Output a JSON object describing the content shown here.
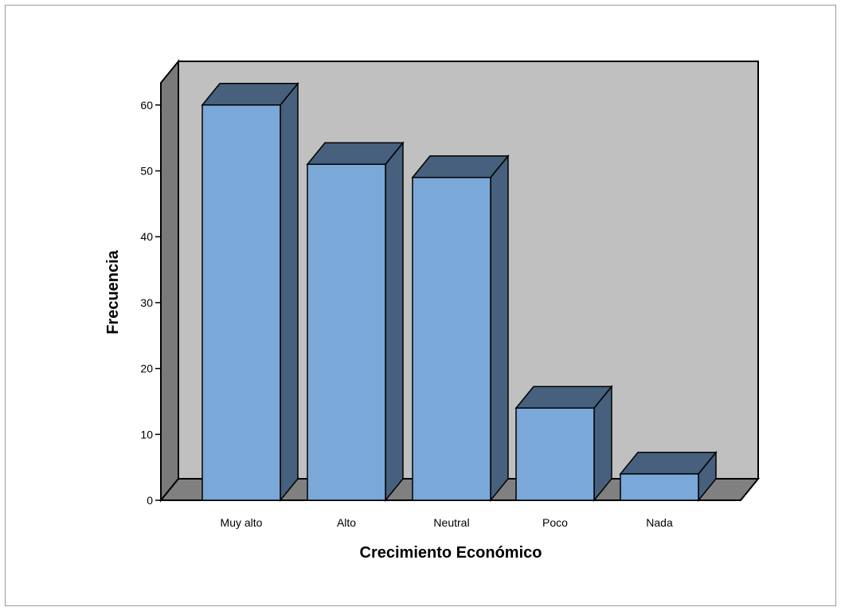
{
  "chart_data": {
    "type": "bar",
    "style": "3d",
    "title": "",
    "xlabel": "Crecimiento Económico",
    "ylabel": "Frecuencia",
    "categories": [
      "Muy alto",
      "Alto",
      "Neutral",
      "Poco",
      "Nada"
    ],
    "values": [
      60,
      51,
      49,
      14,
      4
    ],
    "ylim": [
      0,
      60
    ],
    "yticks": [
      "0",
      "10",
      "20",
      "30",
      "40",
      "50",
      "60"
    ],
    "grid": false,
    "legend": "none",
    "colors": {
      "bar_front": "#7aa8d8",
      "bar_side": "#46607d",
      "bar_top": "#46607d",
      "back_wall": "#c0c0c0",
      "left_wall": "#7a7a7a",
      "floor": "#808080",
      "outline": "#000000"
    }
  }
}
